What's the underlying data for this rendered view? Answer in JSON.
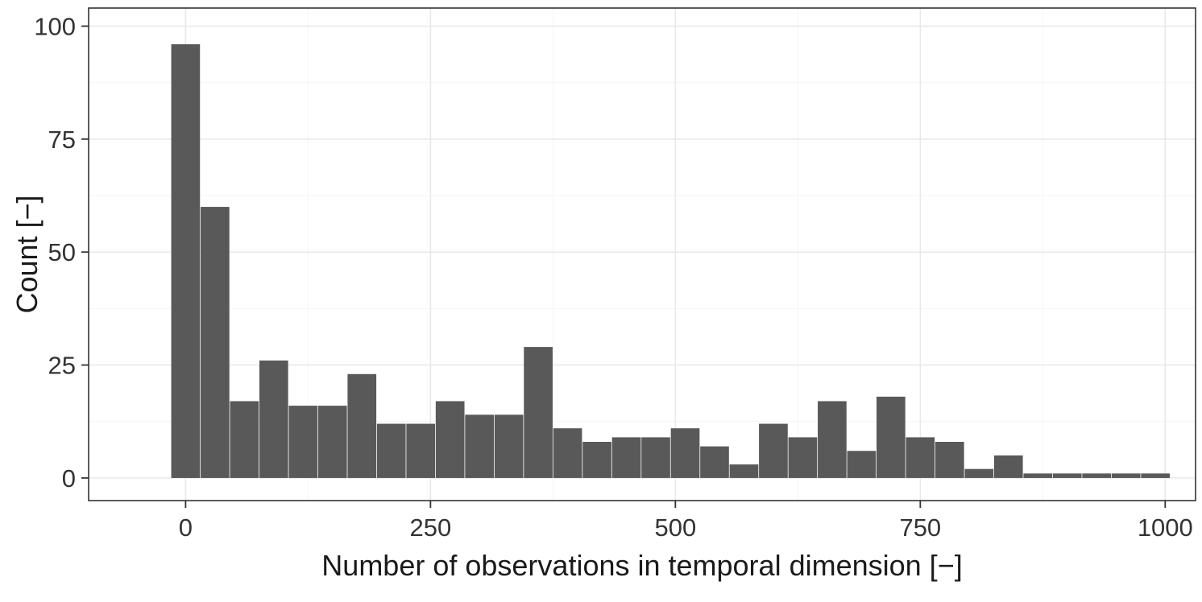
{
  "chart_data": {
    "type": "bar",
    "subtype": "histogram",
    "title": "",
    "xlabel": "Number of observations in temporal dimension [−]",
    "ylabel": "Count [−]",
    "bin_width": 30,
    "bin_centers": [
      0,
      30,
      60,
      90,
      120,
      150,
      180,
      210,
      240,
      270,
      300,
      330,
      360,
      390,
      420,
      450,
      480,
      510,
      540,
      570,
      600,
      630,
      660,
      690,
      720,
      750,
      780,
      810,
      840,
      870,
      900,
      930,
      960,
      990
    ],
    "counts": [
      96,
      60,
      17,
      26,
      16,
      16,
      23,
      12,
      12,
      17,
      14,
      14,
      29,
      11,
      8,
      9,
      9,
      11,
      7,
      3,
      12,
      9,
      17,
      6,
      18,
      9,
      8,
      2,
      5,
      1,
      1,
      1,
      1,
      1
    ],
    "xticks": [
      0,
      250,
      500,
      750,
      1000
    ],
    "xtick_labels": [
      "0",
      "250",
      "500",
      "750",
      "1000"
    ],
    "yticks": [
      0,
      25,
      50,
      75,
      100
    ],
    "ytick_labels": [
      "0",
      "25",
      "50",
      "75",
      "100"
    ],
    "xlim": [
      -99,
      1031
    ],
    "ylim": [
      -5,
      104
    ],
    "grid": true,
    "legend": "none",
    "colors": {
      "bar_fill": "#595959",
      "panel_border": "#333333",
      "grid_major": "#e8e8e8",
      "grid_minor": "#f4f4f4",
      "tick_mark": "#333333",
      "tick_text": "#333333",
      "title_text": "#1a1a1a",
      "background": "#ffffff"
    }
  }
}
